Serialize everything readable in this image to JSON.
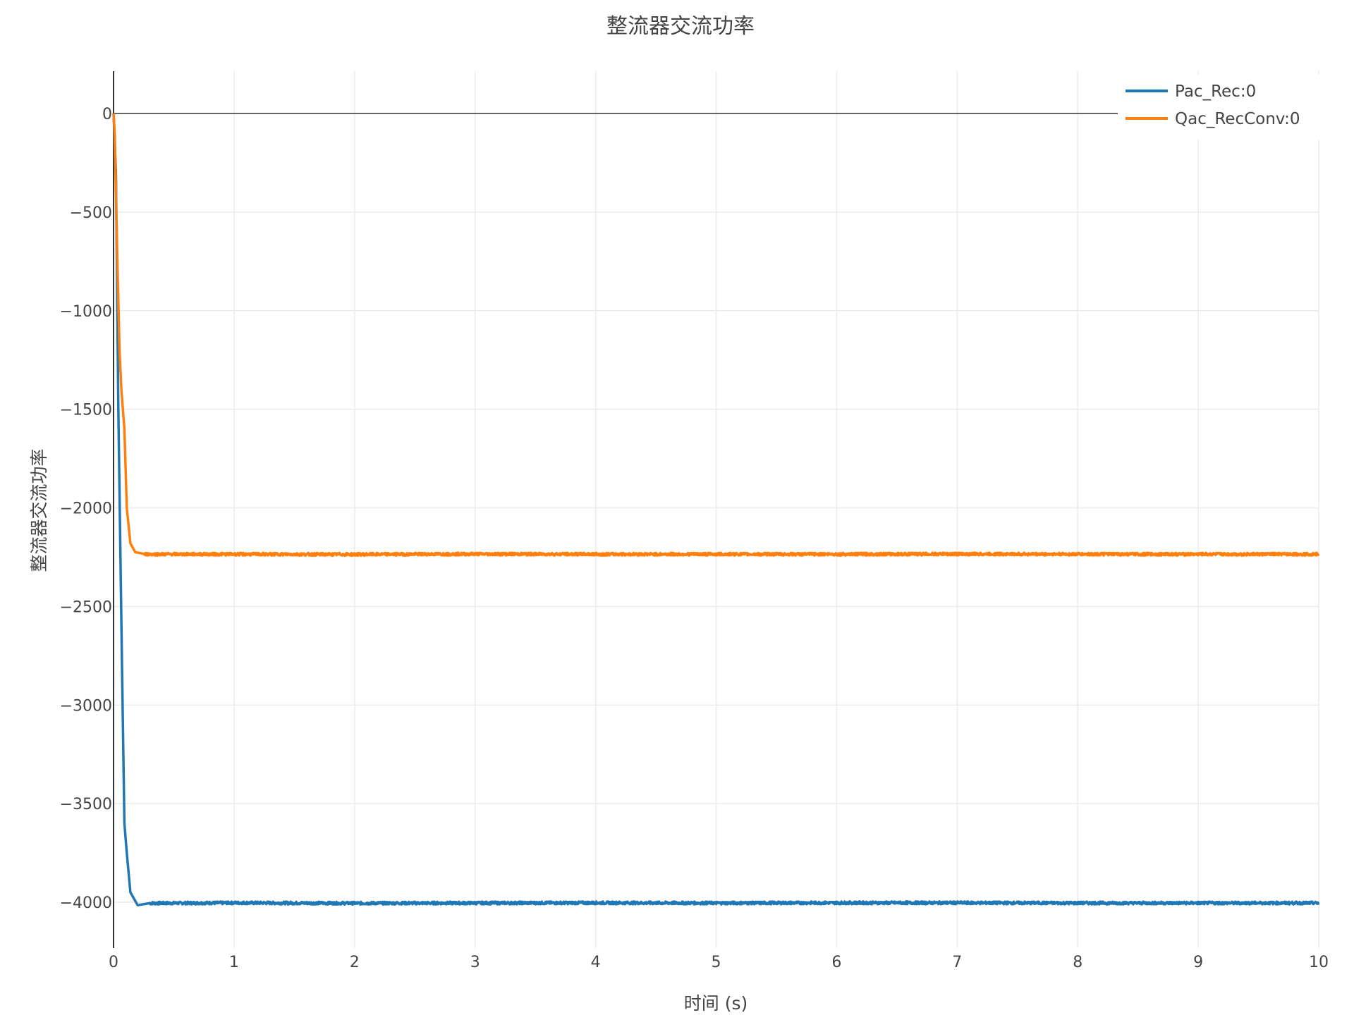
{
  "chart_data": {
    "type": "line",
    "title": "整流器交流功率",
    "xlabel": "时间 (s)",
    "ylabel": "整流器交流功率",
    "xlim": [
      0,
      10
    ],
    "ylim": [
      -4230,
      215
    ],
    "grid": true,
    "legend_position": "top-right",
    "x_ticks": [
      "0",
      "1",
      "2",
      "3",
      "4",
      "5",
      "6",
      "7",
      "8",
      "9",
      "10"
    ],
    "y_ticks": [
      "0",
      "−500",
      "−1000",
      "−1500",
      "−2000",
      "−2500",
      "−3000",
      "−3500",
      "−4000"
    ],
    "series": [
      {
        "name": "Pac_Rec:0",
        "color": "#1f77b4",
        "x": [
          0,
          0.02,
          0.04,
          0.07,
          0.09,
          0.11,
          0.14,
          0.2,
          0.3,
          1,
          2,
          3,
          4,
          5,
          6,
          7,
          8,
          9,
          10
        ],
        "y": [
          0,
          -300,
          -1500,
          -2800,
          -3600,
          -3750,
          -3950,
          -4015,
          -4005,
          -4003,
          -4005,
          -4004,
          -4003,
          -4004,
          -4003,
          -4003,
          -4004,
          -4004,
          -4004
        ]
      },
      {
        "name": "Qac_RecConv:0",
        "color": "#ff7f0e",
        "x": [
          0,
          0.01,
          0.03,
          0.05,
          0.065,
          0.09,
          0.11,
          0.14,
          0.18,
          0.25,
          1,
          2,
          3,
          4,
          5,
          6,
          7,
          8,
          9,
          10
        ],
        "y": [
          0,
          -100,
          -700,
          -1200,
          -1400,
          -1600,
          -2000,
          -2180,
          -2225,
          -2235,
          -2235,
          -2236,
          -2234,
          -2235,
          -2235,
          -2235,
          -2234,
          -2235,
          -2235,
          -2235
        ]
      }
    ]
  }
}
